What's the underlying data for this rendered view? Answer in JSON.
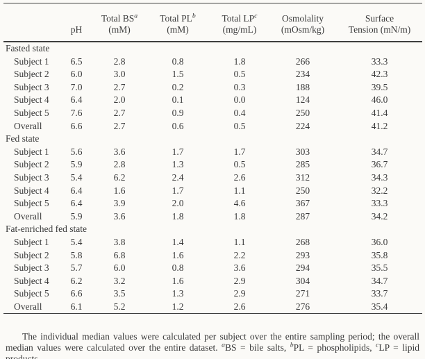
{
  "page": {
    "background_color": "#fbfaf7",
    "text_color": "#3a3a3a",
    "rule_color": "#3e3e3e"
  },
  "table": {
    "header": {
      "ph": "pH",
      "total_bs": {
        "line1": "Total BS",
        "sup": "a",
        "line2": "(mM)"
      },
      "total_pl": {
        "line1": "Total PL",
        "sup": "b",
        "line2": "(mM)"
      },
      "total_lp": {
        "line1": "Total LP",
        "sup": "c",
        "line2": "(mg/mL)"
      },
      "osmolality": {
        "line1": "Osmolality",
        "line2": "(mOsm/kg)"
      },
      "surface_tension": {
        "line1": "Surface",
        "line2": "Tension (mN/m)"
      }
    },
    "sections": [
      {
        "label": "Fasted state",
        "rows": [
          {
            "label": "Subject 1",
            "values": [
              "6.5",
              "2.8",
              "0.8",
              "1.8",
              "266",
              "33.3"
            ]
          },
          {
            "label": "Subject 2",
            "values": [
              "6.0",
              "3.0",
              "1.5",
              "0.5",
              "234",
              "42.3"
            ]
          },
          {
            "label": "Subject 3",
            "values": [
              "7.0",
              "2.7",
              "0.2",
              "0.3",
              "188",
              "39.5"
            ]
          },
          {
            "label": "Subject 4",
            "values": [
              "6.4",
              "2.0",
              "0.1",
              "0.0",
              "124",
              "46.0"
            ]
          },
          {
            "label": "Subject 5",
            "values": [
              "7.6",
              "2.7",
              "0.9",
              "0.4",
              "250",
              "41.4"
            ]
          },
          {
            "label": "Overall",
            "values": [
              "6.6",
              "2.7",
              "0.6",
              "0.5",
              "224",
              "41.2"
            ]
          }
        ]
      },
      {
        "label": "Fed state",
        "rows": [
          {
            "label": "Subject 1",
            "values": [
              "5.6",
              "3.6",
              "1.7",
              "1.7",
              "303",
              "34.7"
            ]
          },
          {
            "label": "Subject 2",
            "values": [
              "5.9",
              "2.8",
              "1.3",
              "0.5",
              "285",
              "36.7"
            ]
          },
          {
            "label": "Subject 3",
            "values": [
              "5.4",
              "6.2",
              "2.4",
              "2.6",
              "312",
              "34.3"
            ]
          },
          {
            "label": "Subject 4",
            "values": [
              "6.4",
              "1.6",
              "1.7",
              "1.1",
              "250",
              "32.2"
            ]
          },
          {
            "label": "Subject 5",
            "values": [
              "6.4",
              "3.9",
              "2.0",
              "4.6",
              "367",
              "33.3"
            ]
          },
          {
            "label": "Overall",
            "values": [
              "5.9",
              "3.6",
              "1.8",
              "1.8",
              "287",
              "34.2"
            ]
          }
        ]
      },
      {
        "label": "Fat-enriched fed state",
        "rows": [
          {
            "label": "Subject 1",
            "values": [
              "5.4",
              "3.8",
              "1.4",
              "1.1",
              "268",
              "36.0"
            ]
          },
          {
            "label": "Subject 2",
            "values": [
              "5.8",
              "6.8",
              "1.6",
              "2.2",
              "293",
              "35.8"
            ]
          },
          {
            "label": "Subject 3",
            "values": [
              "5.7",
              "6.0",
              "0.8",
              "3.6",
              "294",
              "35.5"
            ]
          },
          {
            "label": "Subject 4",
            "values": [
              "6.2",
              "3.2",
              "1.6",
              "2.9",
              "304",
              "34.7"
            ]
          },
          {
            "label": "Subject 5",
            "values": [
              "6.6",
              "3.5",
              "1.3",
              "2.9",
              "271",
              "33.7"
            ]
          },
          {
            "label": "Overall",
            "values": [
              "6.1",
              "5.2",
              "1.2",
              "2.6",
              "276",
              "35.4"
            ]
          }
        ]
      }
    ]
  },
  "footnote": {
    "intro": "The individual median values were calculated per subject over the entire sampling period; the overall median values were calculated over the entire dataset. ",
    "sup_a": "a",
    "def_a": "BS = bile salts, ",
    "sup_b": "b",
    "def_b": "PL = phospholipids, ",
    "sup_c": "c",
    "def_c": "LP = lipid products."
  }
}
